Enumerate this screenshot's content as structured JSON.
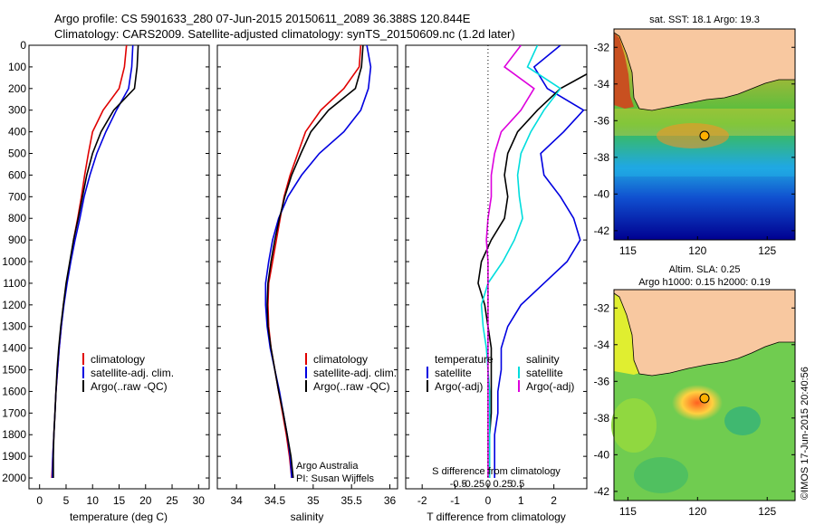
{
  "header": {
    "line1": "Argo profile: CS 5901633_280 07-Jun-2015 20150611_2089 36.388S 120.844E",
    "line2": "Climatology: CARS2009. Satellite-adjusted climatology: synTS_20150609.nc (1.2d later)"
  },
  "colors": {
    "climatology": "#e00000",
    "satellite": "#0000e0",
    "argo": "#000000",
    "salinity_sat": "#00dddd",
    "salinity_argo": "#dd00dd",
    "land": "#f8c8a0"
  },
  "axes": {
    "depth_ticks": [
      "0",
      "100",
      "200",
      "300",
      "400",
      "500",
      "600",
      "700",
      "800",
      "900",
      "1000",
      "1100",
      "1200",
      "1300",
      "1400",
      "1500",
      "1600",
      "1700",
      "1800",
      "1900",
      "2000"
    ],
    "temperature": {
      "label": "temperature (deg C)",
      "ticks": [
        "0",
        "5",
        "10",
        "15",
        "20",
        "25",
        "30"
      ],
      "xlim": [
        -2,
        32
      ]
    },
    "salinity": {
      "label": "salinity",
      "ticks": [
        "34",
        "34.5",
        "35",
        "35.5",
        "36"
      ],
      "xlim": [
        33.75,
        36.1
      ]
    },
    "diff": {
      "label_bottom": "T difference from climatology",
      "label_top": "S difference from climatology",
      "t_ticks": [
        "-2",
        "-1",
        "0",
        "1",
        "2"
      ],
      "s_ticks": [
        "-0.5",
        "-0.25",
        "0",
        "0.25",
        "0.5"
      ],
      "xlim": [
        -2.5,
        3.0
      ]
    }
  },
  "legends": {
    "temperature": [
      "climatology",
      "satellite-adj. clim.",
      "Argo(..raw -QC)"
    ],
    "salinity": [
      "climatology",
      "satellite-adj. clim.",
      "Argo(..raw -QC)"
    ],
    "diff_t_title": "temperature",
    "diff_t": [
      "satellite",
      "Argo(-adj)"
    ],
    "diff_s_title": "salinity",
    "diff_s": [
      "satellite",
      "Argo(-adj)"
    ]
  },
  "credits": {
    "line1": "Argo Australia",
    "line2": "PI: Susan Wijffels"
  },
  "maps": {
    "sst": {
      "title": "sat. SST: 18.1  Argo: 19.3"
    },
    "sla": {
      "title1": "Altim. SLA: 0.25",
      "title2": "Argo h1000: 0.15 h2000: 0.19"
    },
    "lat_ticks": [
      "-32",
      "-34",
      "-36",
      "-38",
      "-40",
      "-42"
    ],
    "lon_ticks": [
      "115",
      "120",
      "125"
    ],
    "float_position": {
      "lon": 120.844,
      "lat": -36.388
    }
  },
  "timestamp": "©IMOS 17-Jun-2015 20:40:56",
  "chart_data": [
    {
      "type": "line",
      "title": "",
      "xlabel": "temperature (deg C)",
      "ylabel": "",
      "xlim": [
        -2,
        32
      ],
      "ylim": [
        2050,
        0
      ],
      "series": [
        {
          "name": "climatology",
          "x": [
            16.4,
            16,
            15,
            12,
            10,
            9.2,
            8.5,
            7.9,
            7.2,
            6.4,
            5.8,
            5.1,
            4.5,
            4.1,
            3.7,
            3.4,
            3.1,
            2.9,
            2.7,
            2.5,
            2.3
          ],
          "y": [
            0,
            100,
            200,
            300,
            400,
            500,
            600,
            700,
            800,
            900,
            1000,
            1100,
            1200,
            1300,
            1400,
            1500,
            1600,
            1700,
            1800,
            1900,
            2000
          ]
        },
        {
          "name": "satellite-adj. clim.",
          "x": [
            17.6,
            17.4,
            16.8,
            14.5,
            12.5,
            10.8,
            9.5,
            8.4,
            7.6,
            6.7,
            5.9,
            5.2,
            4.6,
            4.1,
            3.7,
            3.4,
            3.1,
            2.9,
            2.7,
            2.5,
            2.4
          ],
          "y": [
            0,
            100,
            200,
            300,
            400,
            500,
            600,
            700,
            800,
            900,
            1000,
            1100,
            1200,
            1300,
            1400,
            1500,
            1600,
            1700,
            1800,
            1900,
            2000
          ]
        },
        {
          "name": "Argo(..raw -QC)",
          "x": [
            18.6,
            18.4,
            17.9,
            14,
            11.6,
            10,
            8.9,
            8.1,
            7.3,
            6.4,
            5.7,
            5,
            4.5,
            4,
            3.6,
            3.3,
            3.1,
            2.9,
            2.7,
            2.6,
            2.6
          ],
          "y": [
            0,
            100,
            200,
            300,
            400,
            500,
            600,
            700,
            800,
            900,
            1000,
            1100,
            1200,
            1300,
            1400,
            1500,
            1600,
            1700,
            1800,
            1900,
            2000
          ]
        }
      ]
    },
    {
      "type": "line",
      "title": "",
      "xlabel": "salinity",
      "ylabel": "",
      "xlim": [
        33.75,
        36.1
      ],
      "ylim": [
        2050,
        0
      ],
      "series": [
        {
          "name": "climatology",
          "x": [
            35.62,
            35.6,
            35.4,
            35.1,
            34.9,
            34.8,
            34.7,
            34.62,
            34.57,
            34.52,
            34.47,
            34.42,
            34.41,
            34.42,
            34.45,
            34.5,
            34.55,
            34.6,
            34.65,
            34.69,
            34.72
          ],
          "y": [
            0,
            100,
            200,
            300,
            400,
            500,
            600,
            700,
            800,
            900,
            1000,
            1100,
            1200,
            1300,
            1400,
            1500,
            1600,
            1700,
            1800,
            1900,
            2000
          ]
        },
        {
          "name": "satellite-adj. clim.",
          "x": [
            35.7,
            35.75,
            35.72,
            35.62,
            35.4,
            35.08,
            34.85,
            34.67,
            34.55,
            34.47,
            34.42,
            34.38,
            34.38,
            34.4,
            34.44,
            34.5,
            34.56,
            34.61,
            34.66,
            34.7,
            34.72
          ],
          "y": [
            0,
            100,
            200,
            300,
            400,
            500,
            600,
            700,
            800,
            900,
            1000,
            1100,
            1200,
            1300,
            1400,
            1500,
            1600,
            1700,
            1800,
            1900,
            2000
          ]
        },
        {
          "name": "Argo(..raw -QC)",
          "x": [
            35.65,
            35.63,
            35.55,
            35.2,
            34.97,
            34.84,
            34.72,
            34.63,
            34.56,
            34.5,
            34.45,
            34.41,
            34.4,
            34.41,
            34.45,
            34.5,
            34.55,
            34.61,
            34.66,
            34.71,
            34.74
          ],
          "y": [
            0,
            100,
            200,
            300,
            400,
            500,
            600,
            700,
            800,
            900,
            1000,
            1100,
            1200,
            1300,
            1400,
            1500,
            1600,
            1700,
            1800,
            1900,
            2000
          ]
        }
      ]
    },
    {
      "type": "line",
      "title": "",
      "xlabel": "T difference from climatology",
      "ylabel": "",
      "xlim": [
        -2.5,
        3.0
      ],
      "ylim": [
        2050,
        0
      ],
      "series": [
        {
          "name": "satellite",
          "x": [
            2.2,
            1.4,
            1.8,
            2.9,
            2.3,
            1.6,
            1.7,
            2.2,
            2.6,
            2.8,
            2.4,
            1.7,
            1.0,
            0.6,
            0.4,
            0.4,
            0.3,
            0.3,
            0.2,
            0.2,
            0.2
          ],
          "y": [
            0,
            100,
            200,
            300,
            400,
            500,
            600,
            700,
            800,
            900,
            1000,
            1100,
            1200,
            1300,
            1400,
            1500,
            1600,
            1700,
            1800,
            1900,
            2000
          ]
        },
        {
          "name": "Argo(-adj)",
          "x": [
            3.0,
            3.4,
            2.2,
            1.5,
            0.9,
            0.6,
            0.5,
            0.6,
            0.5,
            0.1,
            -0.2,
            -0.3,
            -0.1,
            0.0,
            0.1,
            0.1,
            0.1,
            0.1,
            0.05,
            0.05,
            0.05
          ],
          "y": [
            0,
            100,
            200,
            300,
            400,
            500,
            600,
            700,
            800,
            900,
            1000,
            1100,
            1200,
            1300,
            1400,
            1500,
            1600,
            1700,
            1800,
            1900,
            2000
          ]
        },
        {
          "name": "salinity satellite",
          "x": [
            1.5,
            1.2,
            2.2,
            1.7,
            1.3,
            1.0,
            0.9,
            0.95,
            1.05,
            0.8,
            0.45,
            0.0,
            -0.2,
            -0.15,
            -0.05,
            0.0,
            0.05,
            0.05,
            0.05,
            0.05,
            0.05
          ],
          "y": [
            0,
            100,
            200,
            300,
            400,
            500,
            600,
            700,
            800,
            900,
            1000,
            1100,
            1200,
            1300,
            1400,
            1500,
            1600,
            1700,
            1800,
            1900,
            2000
          ]
        },
        {
          "name": "salinity Argo(-adj)",
          "x": [
            1.0,
            0.5,
            1.4,
            1.0,
            0.4,
            0.2,
            0.1,
            0.1,
            0.0,
            -0.05,
            0.0,
            0.0,
            0.0,
            0.0,
            0.0,
            0.0,
            0.0,
            0.0,
            0.0,
            0.0,
            0.0
          ],
          "y": [
            0,
            100,
            200,
            300,
            400,
            500,
            600,
            700,
            800,
            900,
            1000,
            1100,
            1200,
            1300,
            1400,
            1500,
            1600,
            1700,
            1800,
            1900,
            2000
          ]
        }
      ]
    }
  ]
}
